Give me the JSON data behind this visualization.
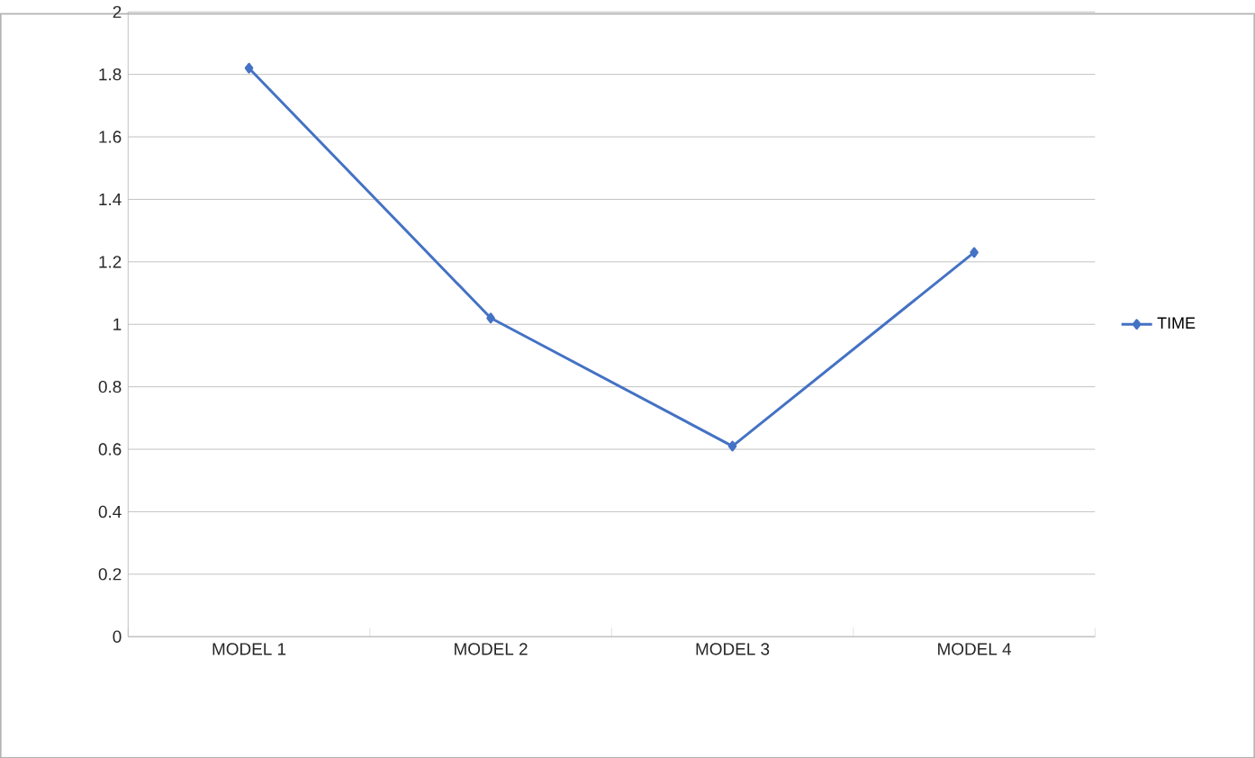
{
  "chart_data": {
    "type": "line",
    "categories": [
      "MODEL 1",
      "MODEL  2",
      "MODEL  3",
      "MODEL  4"
    ],
    "series": [
      {
        "name": "TIME",
        "color": "#4472c4",
        "values": [
          1.82,
          1.02,
          0.61,
          1.23
        ]
      }
    ],
    "ylim": [
      0,
      2
    ],
    "yticks": [
      0,
      0.2,
      0.4,
      0.6,
      0.8,
      1,
      1.2,
      1.4,
      1.6,
      1.8,
      2
    ],
    "grid": "y",
    "legend": "right",
    "marker": "diamond",
    "line_style": "solid"
  }
}
